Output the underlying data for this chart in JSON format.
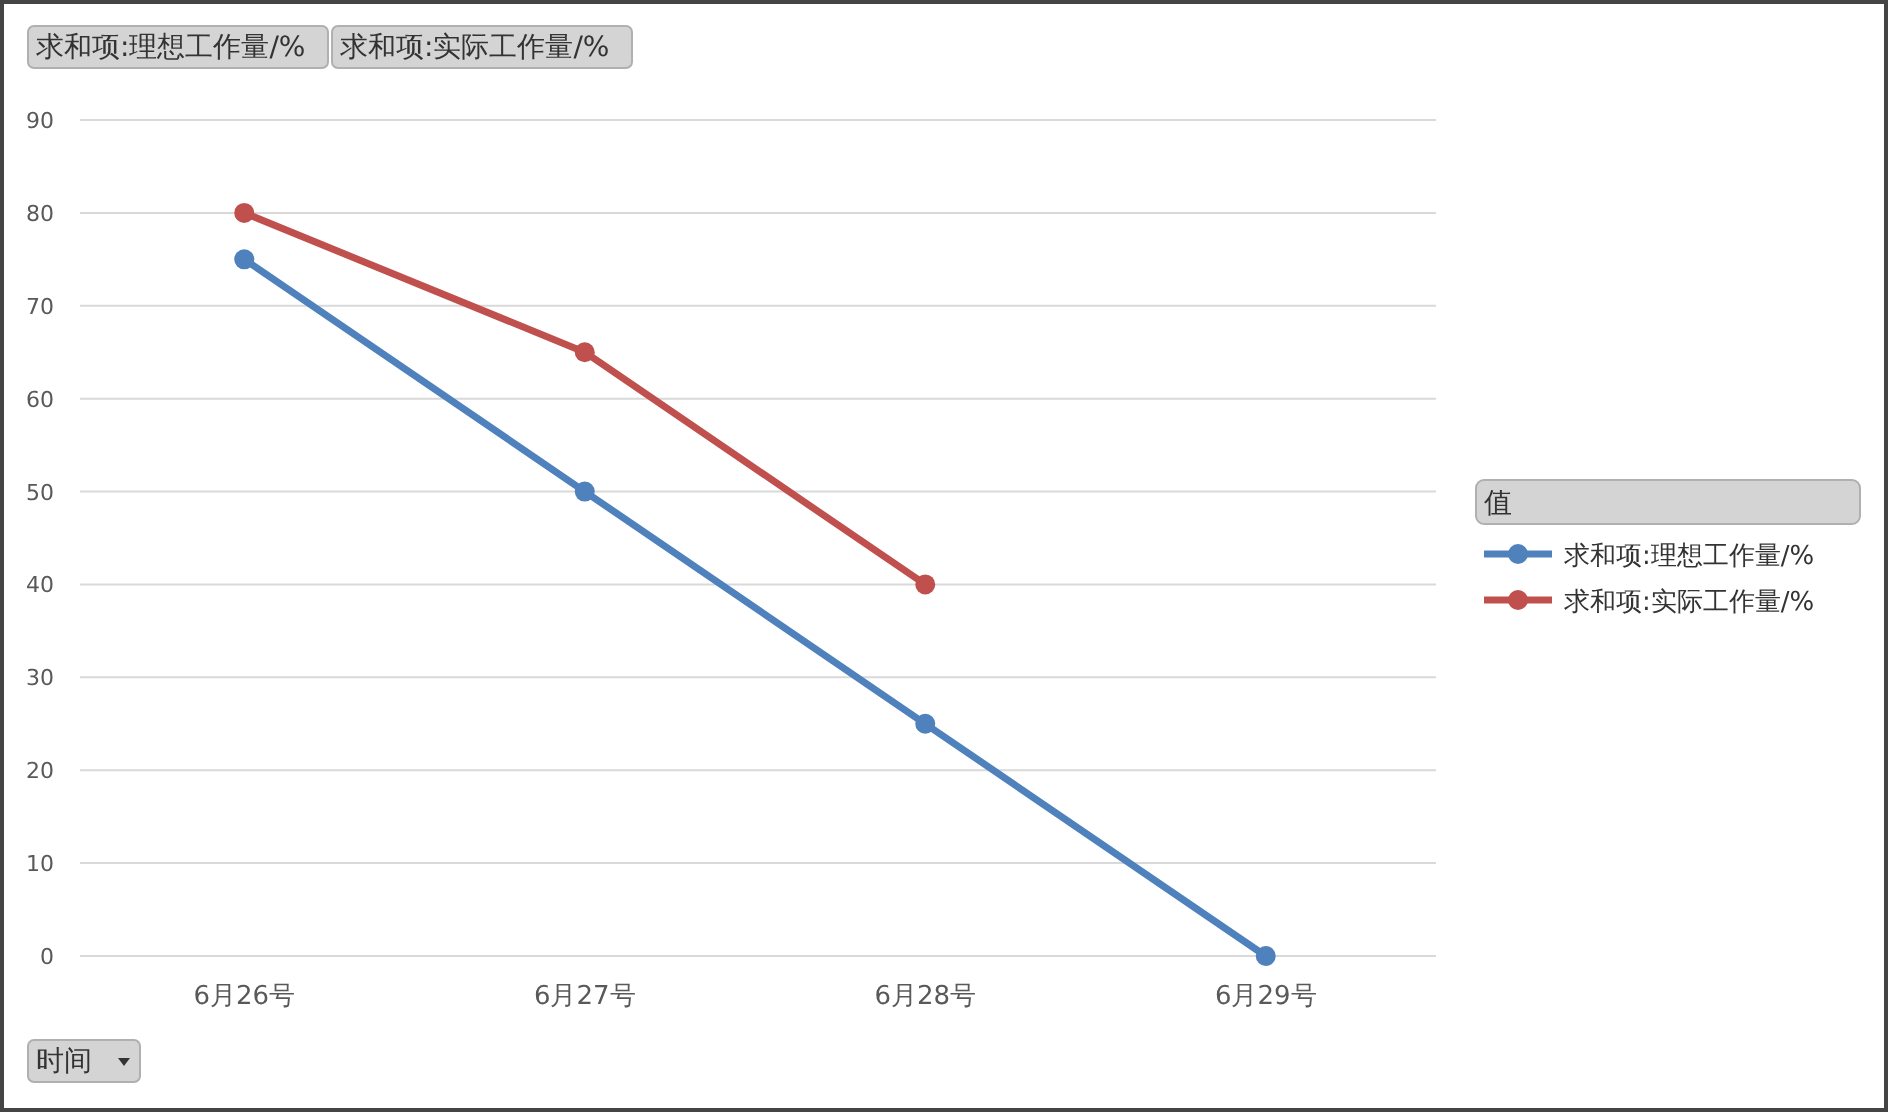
{
  "chart_data": {
    "type": "line",
    "categories": [
      "6月26号",
      "6月27号",
      "6月28号",
      "6月29号"
    ],
    "series": [
      {
        "name": "求和项:理想工作量/%",
        "color": "#4f81bd",
        "values": [
          75,
          50,
          25,
          0
        ]
      },
      {
        "name": "求和项:实际工作量/%",
        "color": "#c0504d",
        "values": [
          80,
          65,
          40,
          null
        ]
      }
    ],
    "ylim": [
      0,
      90
    ],
    "yticks": [
      0,
      10,
      20,
      30,
      40,
      50,
      60,
      70,
      80,
      90
    ],
    "grid": "y",
    "legend": "right",
    "legend_title": "值",
    "xlabel": "时间",
    "annotations": [
      "求和项:理想工作量/%",
      "求和项:实际工作量/%"
    ],
    "marker": "circle",
    "line_style": "solid"
  }
}
